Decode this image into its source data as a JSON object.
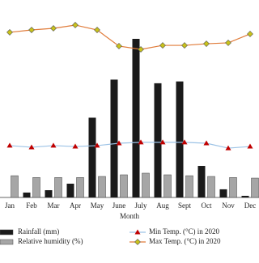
{
  "chart_data": {
    "type": "bar-line",
    "x_label": "Month",
    "categories": [
      "Jan",
      "Feb",
      "Mar",
      "Apr",
      "May",
      "June",
      "July",
      "Aug",
      "Sept",
      "Oct",
      "Nov",
      "Dec"
    ],
    "ylim": [
      0,
      100
    ],
    "series": [
      {
        "name": "Rainfall (mm)",
        "type": "bar",
        "color": "#1a1a1a",
        "values": [
          0,
          2.7,
          4,
          7.6,
          44,
          65,
          87.5,
          63,
          64,
          17.4,
          4.5,
          0.9
        ]
      },
      {
        "name": "Relative humidity (%)",
        "type": "bar",
        "color": "#a6a6a6",
        "values": [
          12,
          11,
          11,
          11,
          11.6,
          12.5,
          13.4,
          12.5,
          12,
          11.6,
          11,
          10.7
        ]
      },
      {
        "name": "Min Temp. (°C) in 2020",
        "type": "line",
        "color": "#9dc3e6",
        "marker_color": "#c00000",
        "marker": "triangle",
        "values": [
          28.6,
          27.7,
          28.6,
          28.1,
          28.6,
          29.9,
          30.4,
          30.4,
          30.4,
          29.9,
          27.2,
          28.1
        ]
      },
      {
        "name": "Max Temp. (°C) in 2020",
        "type": "line",
        "color": "#e07b39",
        "marker_color": "#c9c21b",
        "marker": "diamond",
        "values": [
          91.1,
          92.4,
          93.3,
          95.1,
          92.4,
          83.5,
          81.7,
          83.9,
          83.9,
          84.8,
          85.3,
          90.2
        ]
      }
    ]
  }
}
